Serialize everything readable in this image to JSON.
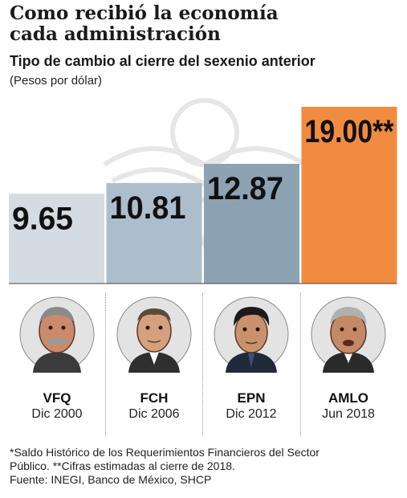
{
  "header": {
    "title_line1": "Como recibió la economía",
    "title_line2": "cada administración",
    "subtitle": "Tipo de cambio al cierre del sexenio anterior",
    "unit": "(Pesos por dólar)"
  },
  "chart_data": {
    "type": "bar",
    "categories": [
      "VFQ",
      "FCH",
      "EPN",
      "AMLO"
    ],
    "values": [
      9.65,
      10.81,
      12.87,
      19.0
    ],
    "value_labels": [
      "9.65",
      "10.81",
      "12.87",
      "19.00**"
    ],
    "category_sublabels": [
      "Dic 2000",
      "Dic 2006",
      "Dic 2012",
      "Jun 2018"
    ],
    "title": "Tipo de cambio al cierre del sexenio anterior",
    "ylabel": "(Pesos por dólar)",
    "ylim": [
      0,
      19.0
    ],
    "grid": false,
    "bar_colors": [
      "#d3dce2",
      "#acbecb",
      "#8da2b3",
      "#f08b3f"
    ]
  },
  "presidents": [
    {
      "name": "VFQ",
      "date": "Dic 2000",
      "icon": "portrait-vfq-icon"
    },
    {
      "name": "FCH",
      "date": "Dic 2006",
      "icon": "portrait-fch-icon"
    },
    {
      "name": "EPN",
      "date": "Dic 2012",
      "icon": "portrait-epn-icon"
    },
    {
      "name": "AMLO",
      "date": "Jun 2018",
      "icon": "portrait-amlo-icon"
    }
  ],
  "notes": {
    "line1": "*Saldo Histórico de los Requerimientos Financieros del Sector",
    "line2": "Público. **Cifras estimadas al cierre de 2018.",
    "line3": "Fuente: INEGI, Banco de México, SHCP"
  }
}
